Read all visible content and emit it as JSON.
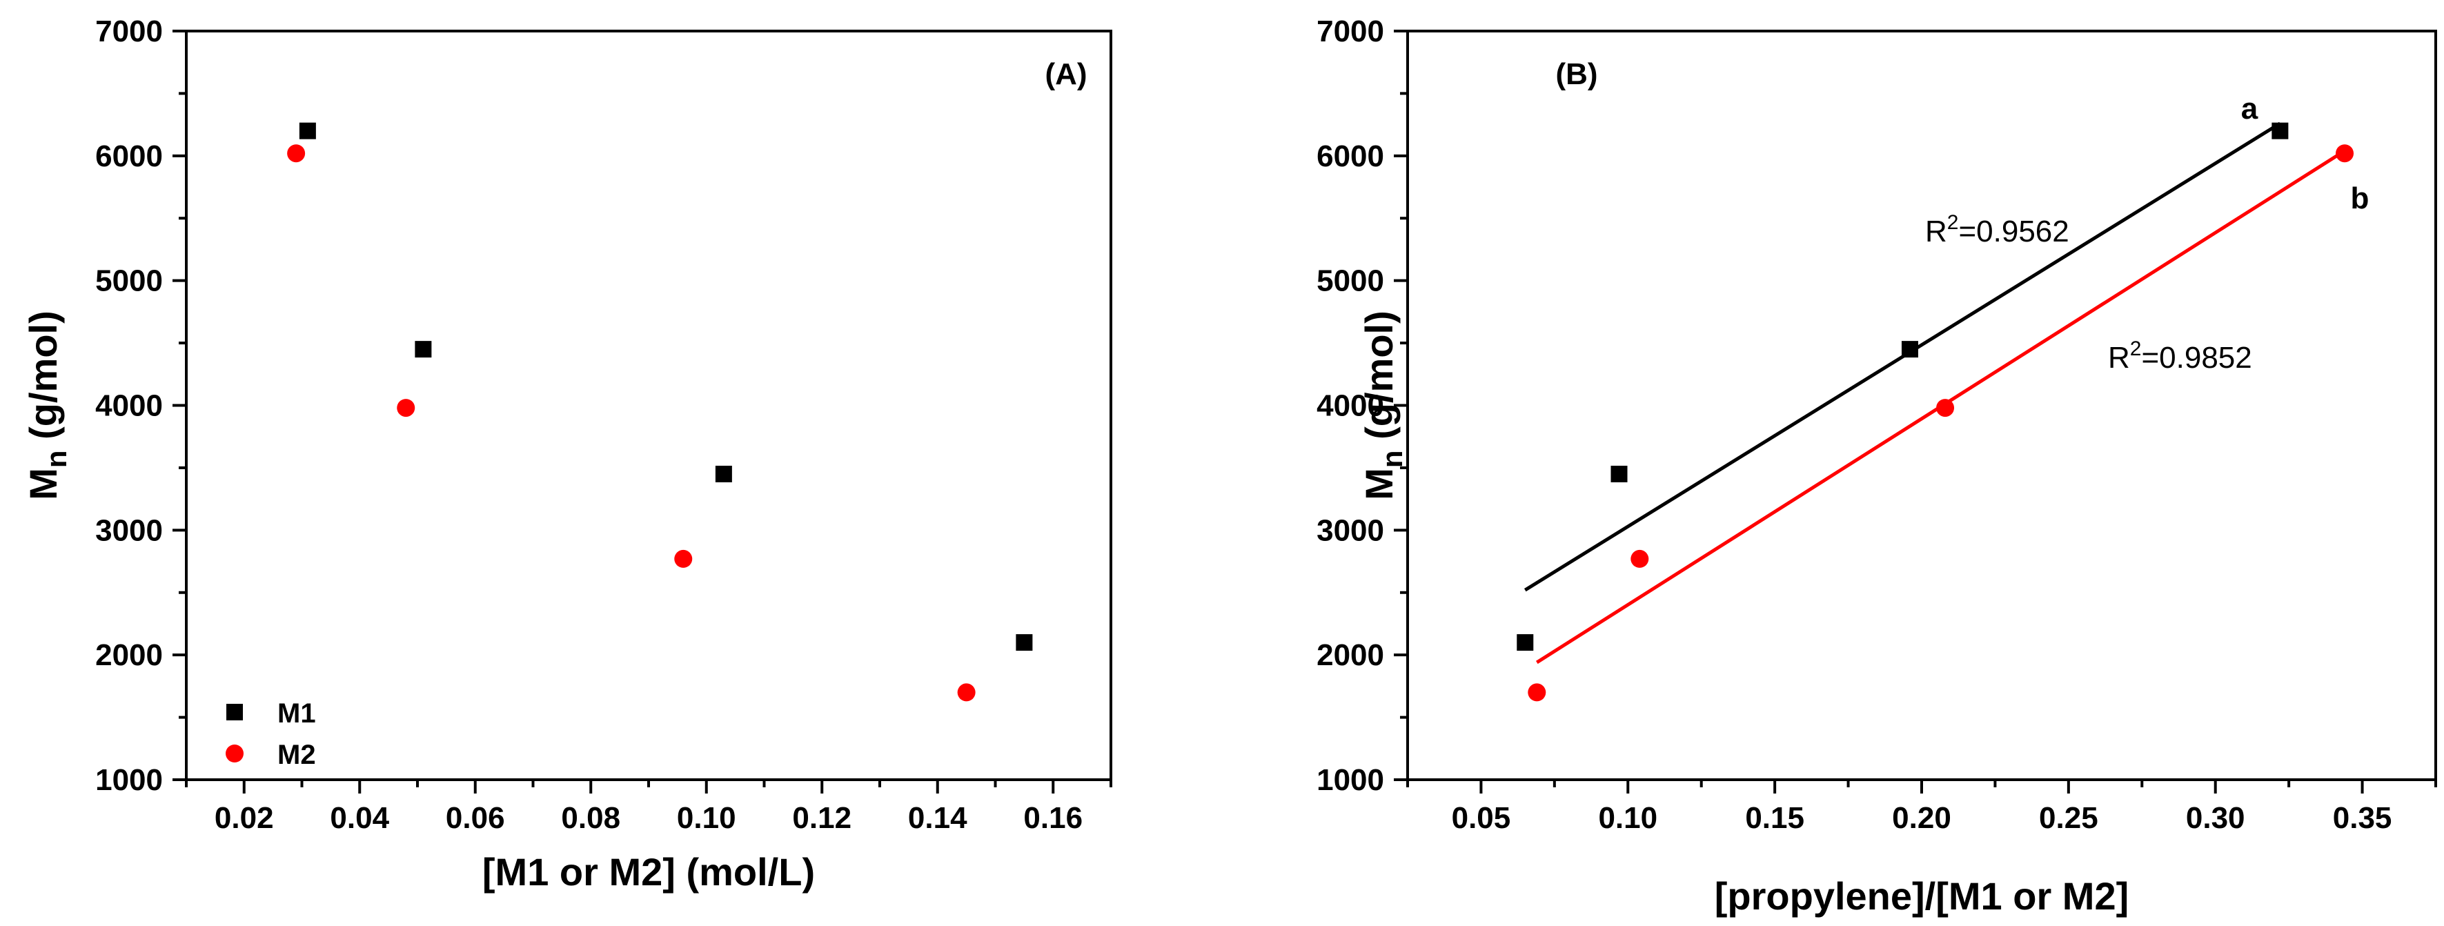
{
  "chart_data": [
    {
      "type": "scatter",
      "panel_label": "(A)",
      "xlabel": "[M1 or M2] (mol/L)",
      "ylabel": {
        "main": "M",
        "sub": "n",
        "rest": " (g/mol)"
      },
      "xlim": [
        0.01,
        0.17
      ],
      "ylim": [
        1000,
        7000
      ],
      "xticks": [
        0.02,
        0.04,
        0.06,
        0.08,
        0.1,
        0.12,
        0.14,
        0.16
      ],
      "xtick_labels": [
        "0.02",
        "0.04",
        "0.06",
        "0.08",
        "0.10",
        "0.12",
        "0.14",
        "0.16"
      ],
      "yticks": [
        1000,
        2000,
        3000,
        4000,
        5000,
        6000,
        7000
      ],
      "ytick_labels": [
        "1000",
        "2000",
        "3000",
        "4000",
        "5000",
        "6000",
        "7000"
      ],
      "legend": {
        "position": "bottom-left"
      },
      "series": [
        {
          "name": "M1",
          "marker": "square",
          "color": "#000000",
          "x": [
            0.031,
            0.051,
            0.103,
            0.155
          ],
          "y": [
            6200,
            4450,
            3450,
            2100
          ]
        },
        {
          "name": "M2",
          "marker": "circle",
          "color": "#ff0000",
          "x": [
            0.029,
            0.048,
            0.096,
            0.145
          ],
          "y": [
            6020,
            3980,
            2770,
            1700
          ]
        }
      ]
    },
    {
      "type": "scatter",
      "panel_label": "(B)",
      "xlabel": "[propylene]/[M1 or M2]",
      "ylabel": {
        "main": "M",
        "sub": "n",
        "rest": " (g/mol)"
      },
      "xlim": [
        0.025,
        0.375
      ],
      "ylim": [
        1000,
        7000
      ],
      "xticks": [
        0.05,
        0.1,
        0.15,
        0.2,
        0.25,
        0.3,
        0.35
      ],
      "xtick_labels": [
        "0.05",
        "0.10",
        "0.15",
        "0.20",
        "0.25",
        "0.30",
        "0.35"
      ],
      "yticks": [
        1000,
        2000,
        3000,
        4000,
        5000,
        6000,
        7000
      ],
      "ytick_labels": [
        "1000",
        "2000",
        "3000",
        "4000",
        "5000",
        "6000",
        "7000"
      ],
      "series": [
        {
          "name": "a",
          "marker": "square",
          "color": "#000000",
          "x": [
            0.065,
            0.097,
            0.196,
            0.322
          ],
          "y": [
            2100,
            3450,
            4450,
            6200
          ],
          "fit": {
            "x": [
              0.065,
              0.322
            ],
            "y": [
              2520,
              6260
            ]
          },
          "r2": {
            "prefix": "R",
            "sup": "2",
            "value": "=0.9562"
          }
        },
        {
          "name": "b",
          "marker": "circle",
          "color": "#ff0000",
          "x": [
            0.069,
            0.104,
            0.208,
            0.344
          ],
          "y": [
            1700,
            2770,
            3980,
            6020
          ],
          "fit": {
            "x": [
              0.069,
              0.344
            ],
            "y": [
              1940,
              6040
            ]
          },
          "r2": {
            "prefix": "R",
            "sup": "2",
            "value": "=0.9852"
          }
        }
      ]
    }
  ]
}
